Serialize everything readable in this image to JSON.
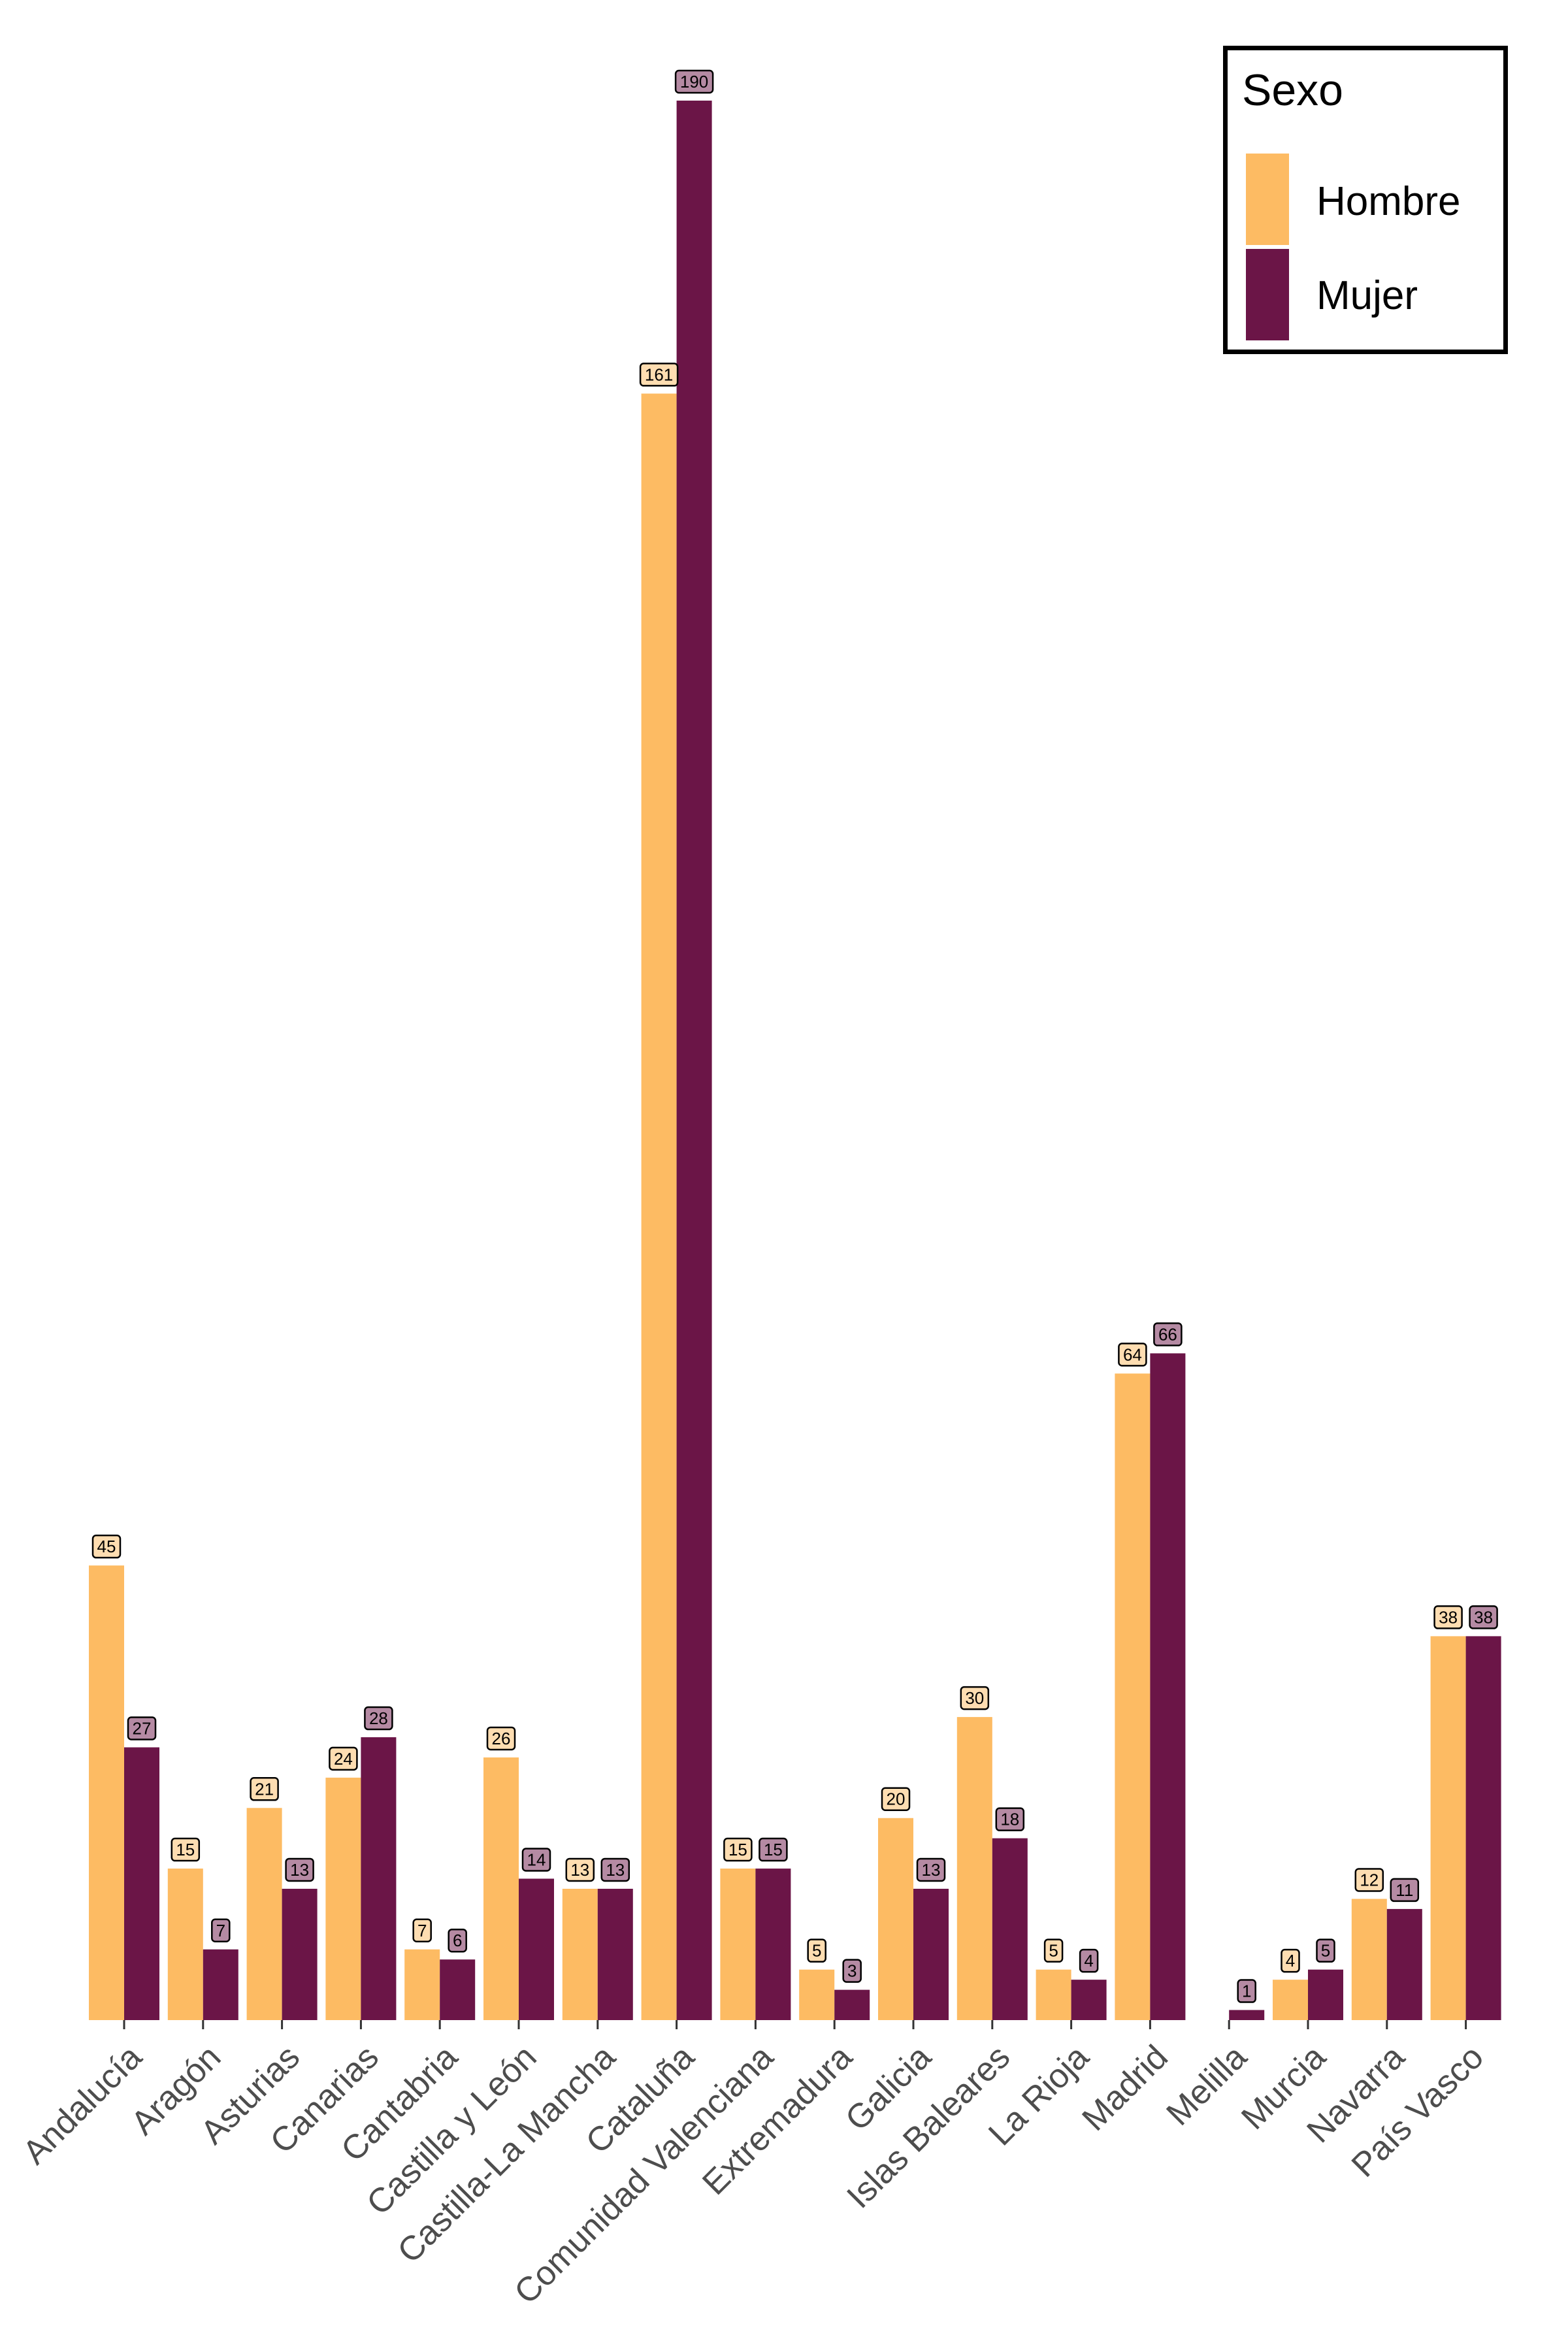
{
  "chart_data": {
    "type": "bar",
    "categories": [
      "Andalucía",
      "Aragón",
      "Asturias",
      "Canarias",
      "Cantabria",
      "Castilla y León",
      "Castilla-La Mancha",
      "Cataluña",
      "Comunidad Valenciana",
      "Extremadura",
      "Galicia",
      "Islas Baleares",
      "La Rioja",
      "Madrid",
      "Melilla",
      "Murcia",
      "Navarra",
      "País Vasco"
    ],
    "series": [
      {
        "name": "Hombre",
        "color": "#FDBB63",
        "label_fill": "#FEDDB1",
        "values": [
          45,
          15,
          21,
          24,
          7,
          26,
          13,
          161,
          15,
          5,
          20,
          30,
          5,
          64,
          null,
          4,
          12,
          38
        ]
      },
      {
        "name": "Mujer",
        "color": "#6B1547",
        "label_fill": "#B58AA3",
        "values": [
          27,
          7,
          13,
          28,
          6,
          14,
          13,
          190,
          15,
          3,
          13,
          18,
          4,
          66,
          1,
          5,
          11,
          38
        ]
      }
    ],
    "title": "",
    "xlabel": "",
    "ylabel": "",
    "ylim": [
      0,
      190
    ],
    "grid": false,
    "legend": {
      "title": "Sexo",
      "position": "top-right"
    }
  }
}
